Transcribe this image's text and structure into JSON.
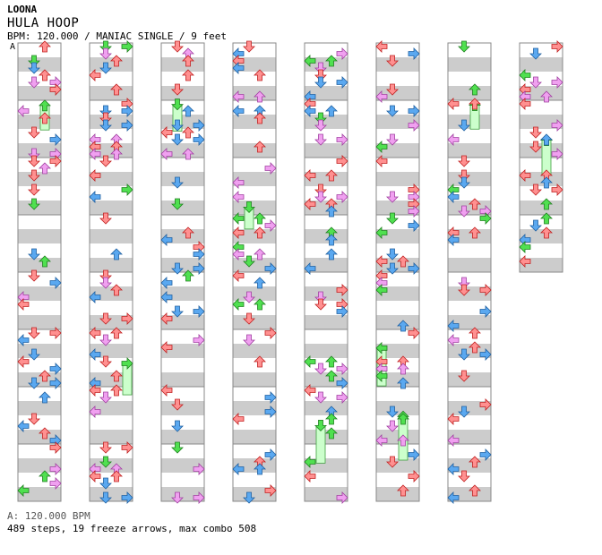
{
  "header": {
    "artist": "LOONA",
    "title": "HULA HOOP",
    "meta": "BPM: 120.000 / MANIAC SINGLE / 9 feet",
    "marker": "A"
  },
  "footer": {
    "bpm_line": "A: 120.000 BPM",
    "stats_line": "489 steps, 19 freeze arrows, max combo 508"
  },
  "chart_data": {
    "type": "step_chart",
    "columns": 8,
    "lanes": [
      "left",
      "down",
      "up",
      "right"
    ],
    "measures_per_column": 8,
    "measures_in_last_column": 4,
    "total_steps": 489,
    "freeze_arrows": 19,
    "max_combo": 508,
    "bpm": 120.0,
    "colors": {
      "quarter": "#ff9090",
      "eighth": "#5aa8f0",
      "sixteenth": "#f0a0f0",
      "freeze": "#50e050",
      "freeze_body": "#ccffcc",
      "stripe": "#cccccc",
      "measure_line": "#888888"
    }
  }
}
